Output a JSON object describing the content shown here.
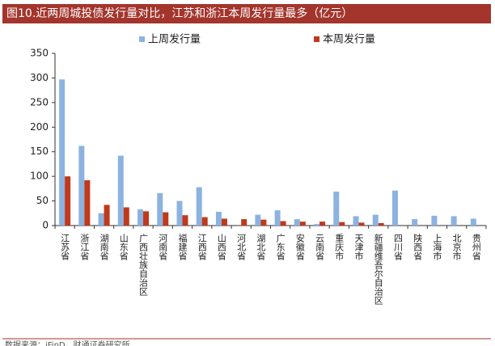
{
  "chart_data": {
    "type": "bar",
    "title": "图10.近两周城投债发行量对比，江苏和浙江本周发行量最多（亿元）",
    "source": "数据来源：iFinD，财通证券研究所",
    "categories": [
      "江苏省",
      "浙江省",
      "湖南省",
      "山东省",
      "广西壮族自治区",
      "河南省",
      "福建省",
      "江西省",
      "山西省",
      "河北省",
      "湖北省",
      "广东省",
      "安徽省",
      "云南省",
      "重庆市",
      "天津市",
      "新疆维吾尔自治区",
      "四川省",
      "陕西省",
      "上海市",
      "北京市",
      "贵州省"
    ],
    "series": [
      {
        "name": "上周发行量",
        "color": "#8cb3e0",
        "values": [
          297,
          162,
          25,
          142,
          33,
          66,
          50,
          78,
          28,
          0,
          22,
          31,
          13,
          3,
          69,
          19,
          22,
          71,
          13,
          20,
          19,
          14
        ]
      },
      {
        "name": "本周发行量",
        "color": "#c0391b",
        "values": [
          100,
          92,
          42,
          37,
          29,
          27,
          21,
          17,
          14,
          13,
          12,
          9,
          8,
          8,
          7,
          6,
          5,
          0,
          0,
          0,
          0,
          0
        ]
      }
    ],
    "ylim": [
      0,
      350
    ],
    "yticks": [
      0,
      50,
      100,
      150,
      200,
      250,
      300,
      350
    ]
  }
}
